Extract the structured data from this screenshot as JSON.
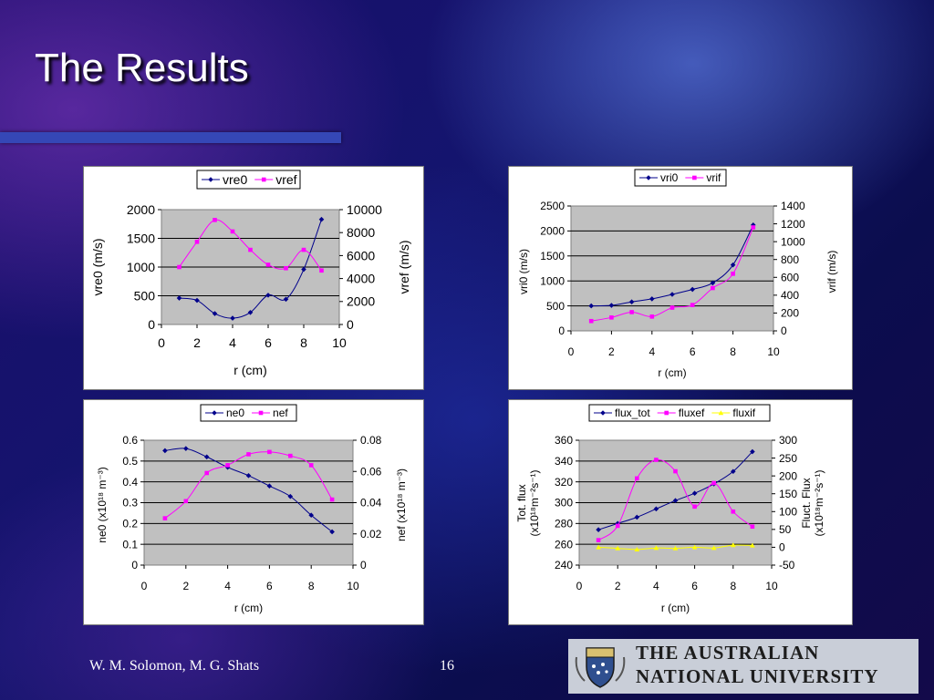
{
  "slide": {
    "title": "The Results",
    "author": "W. M. Solomon, M. G. Shats",
    "page_number": "16",
    "logo_line1": "THE AUSTRALIAN",
    "logo_line2": "NATIONAL UNIVERSITY"
  },
  "colors": {
    "series_blue": "#00008b",
    "series_magenta": "#ff00ff",
    "series_yellow": "#ffff00",
    "plot_area": "#c0c0c0",
    "title_bar": "#3547b6"
  },
  "chart_data": [
    {
      "type": "line",
      "dual_axis": true,
      "legend": [
        "vre0",
        "vref"
      ],
      "legend_position": "top",
      "xlabel": "r (cm)",
      "xlim": [
        0,
        10
      ],
      "xticks": [
        "0",
        "2",
        "4",
        "6",
        "8",
        "10"
      ],
      "ylabel": "vre0 (m/s)",
      "ylim": [
        0,
        2000
      ],
      "yticks": [
        "0",
        "500",
        "1000",
        "1500",
        "2000"
      ],
      "y2label": "vref  (m/s)",
      "y2lim": [
        0,
        10000
      ],
      "y2ticks": [
        "0",
        "2000",
        "4000",
        "6000",
        "8000",
        "10000"
      ],
      "series": [
        {
          "name": "vre0",
          "axis": "left",
          "color": "#00008b",
          "marker": "diamond",
          "x": [
            1,
            2,
            3,
            4,
            5,
            6,
            7,
            8,
            9
          ],
          "y": [
            460,
            420,
            190,
            110,
            210,
            510,
            440,
            960,
            1830
          ]
        },
        {
          "name": "vref",
          "axis": "right",
          "color": "#ff00ff",
          "marker": "square",
          "x": [
            1,
            2,
            3,
            4,
            5,
            6,
            7,
            8,
            9
          ],
          "y": [
            5000,
            7200,
            9100,
            8100,
            6500,
            5200,
            4900,
            6500,
            4700
          ]
        }
      ]
    },
    {
      "type": "line",
      "dual_axis": true,
      "legend": [
        "vri0",
        "vrif"
      ],
      "legend_position": "top",
      "xlabel": "r (cm)",
      "xlim": [
        0,
        10
      ],
      "xticks": [
        "0",
        "2",
        "4",
        "6",
        "8",
        "10"
      ],
      "ylabel": "vri0 (m/s)",
      "ylim": [
        0,
        2500
      ],
      "yticks": [
        "0",
        "500",
        "1000",
        "1500",
        "2000",
        "2500"
      ],
      "y2label": "vrif (m/s)",
      "y2lim": [
        0,
        1400
      ],
      "y2ticks": [
        "0",
        "200",
        "400",
        "600",
        "800",
        "1000",
        "1200",
        "1400"
      ],
      "series": [
        {
          "name": "vri0",
          "axis": "left",
          "color": "#00008b",
          "marker": "diamond",
          "x": [
            1,
            2,
            3,
            4,
            5,
            6,
            7,
            8,
            9
          ],
          "y": [
            500,
            510,
            580,
            640,
            730,
            830,
            960,
            1320,
            2120
          ]
        },
        {
          "name": "vrif",
          "axis": "right",
          "color": "#ff00ff",
          "marker": "square",
          "x": [
            1,
            2,
            3,
            4,
            5,
            6,
            7,
            8,
            9
          ],
          "y": [
            110,
            150,
            210,
            160,
            260,
            290,
            480,
            640,
            1160
          ]
        }
      ]
    },
    {
      "type": "line",
      "dual_axis": true,
      "legend": [
        "ne0",
        "nef"
      ],
      "legend_position": "top",
      "xlabel": "r (cm)",
      "xlim": [
        0,
        10
      ],
      "xticks": [
        "0",
        "2",
        "4",
        "6",
        "8",
        "10"
      ],
      "ylabel": "ne0 (x10¹⁸ m⁻³)",
      "ylim": [
        0,
        0.6
      ],
      "yticks": [
        "0",
        "0.1",
        "0.2",
        "0.3",
        "0.4",
        "0.5",
        "0.6"
      ],
      "y2label": "nef (x10¹⁸ m⁻³)",
      "y2lim": [
        0,
        0.08
      ],
      "y2ticks": [
        "0",
        "0.02",
        "0.04",
        "0.06",
        "0.08"
      ],
      "series": [
        {
          "name": "ne0",
          "axis": "left",
          "color": "#00008b",
          "marker": "diamond",
          "x": [
            1,
            2,
            3,
            4,
            5,
            6,
            7,
            8,
            9
          ],
          "y": [
            0.55,
            0.56,
            0.52,
            0.47,
            0.43,
            0.38,
            0.33,
            0.24,
            0.16
          ]
        },
        {
          "name": "nef",
          "axis": "right",
          "color": "#ff00ff",
          "marker": "square",
          "x": [
            1,
            2,
            3,
            4,
            5,
            6,
            7,
            8,
            9
          ],
          "y": [
            0.03,
            0.041,
            0.059,
            0.064,
            0.071,
            0.0725,
            0.07,
            0.064,
            0.042
          ]
        }
      ]
    },
    {
      "type": "line",
      "dual_axis": true,
      "legend": [
        "flux_tot",
        "fluxef",
        "fluxif"
      ],
      "legend_position": "top",
      "xlabel": "r (cm)",
      "xlim": [
        0,
        10
      ],
      "xticks": [
        "0",
        "2",
        "4",
        "6",
        "8",
        "10"
      ],
      "ylabel_lines": [
        "Tot. flux",
        "(x10¹⁸m⁻²s⁻¹)"
      ],
      "ylim": [
        240,
        360
      ],
      "yticks": [
        "240",
        "260",
        "280",
        "300",
        "320",
        "340",
        "360"
      ],
      "y2label_lines": [
        "Fluct. Flux",
        "(x10¹⁸m⁻²s⁻¹)"
      ],
      "y2lim": [
        -50,
        300
      ],
      "y2ticks": [
        "-50",
        "0",
        "50",
        "100",
        "150",
        "200",
        "250",
        "300"
      ],
      "series": [
        {
          "name": "flux_tot",
          "axis": "left",
          "color": "#00008b",
          "marker": "diamond",
          "x": [
            1,
            2,
            3,
            4,
            5,
            6,
            7,
            8,
            9
          ],
          "y": [
            274,
            280,
            286,
            294,
            302,
            309,
            318,
            330,
            349
          ]
        },
        {
          "name": "fluxef",
          "axis": "right",
          "color": "#ff00ff",
          "marker": "square",
          "x": [
            1,
            2,
            3,
            4,
            5,
            6,
            7,
            8,
            9
          ],
          "y": [
            20,
            60,
            193,
            245,
            213,
            114,
            180,
            100,
            58
          ]
        },
        {
          "name": "fluxif",
          "axis": "right",
          "color": "#ffff00",
          "marker": "triangle",
          "x": [
            1,
            2,
            3,
            4,
            5,
            6,
            7,
            8,
            9
          ],
          "y": [
            0,
            -3,
            -6,
            -2,
            -3,
            0,
            -2,
            6,
            5
          ]
        }
      ]
    }
  ]
}
